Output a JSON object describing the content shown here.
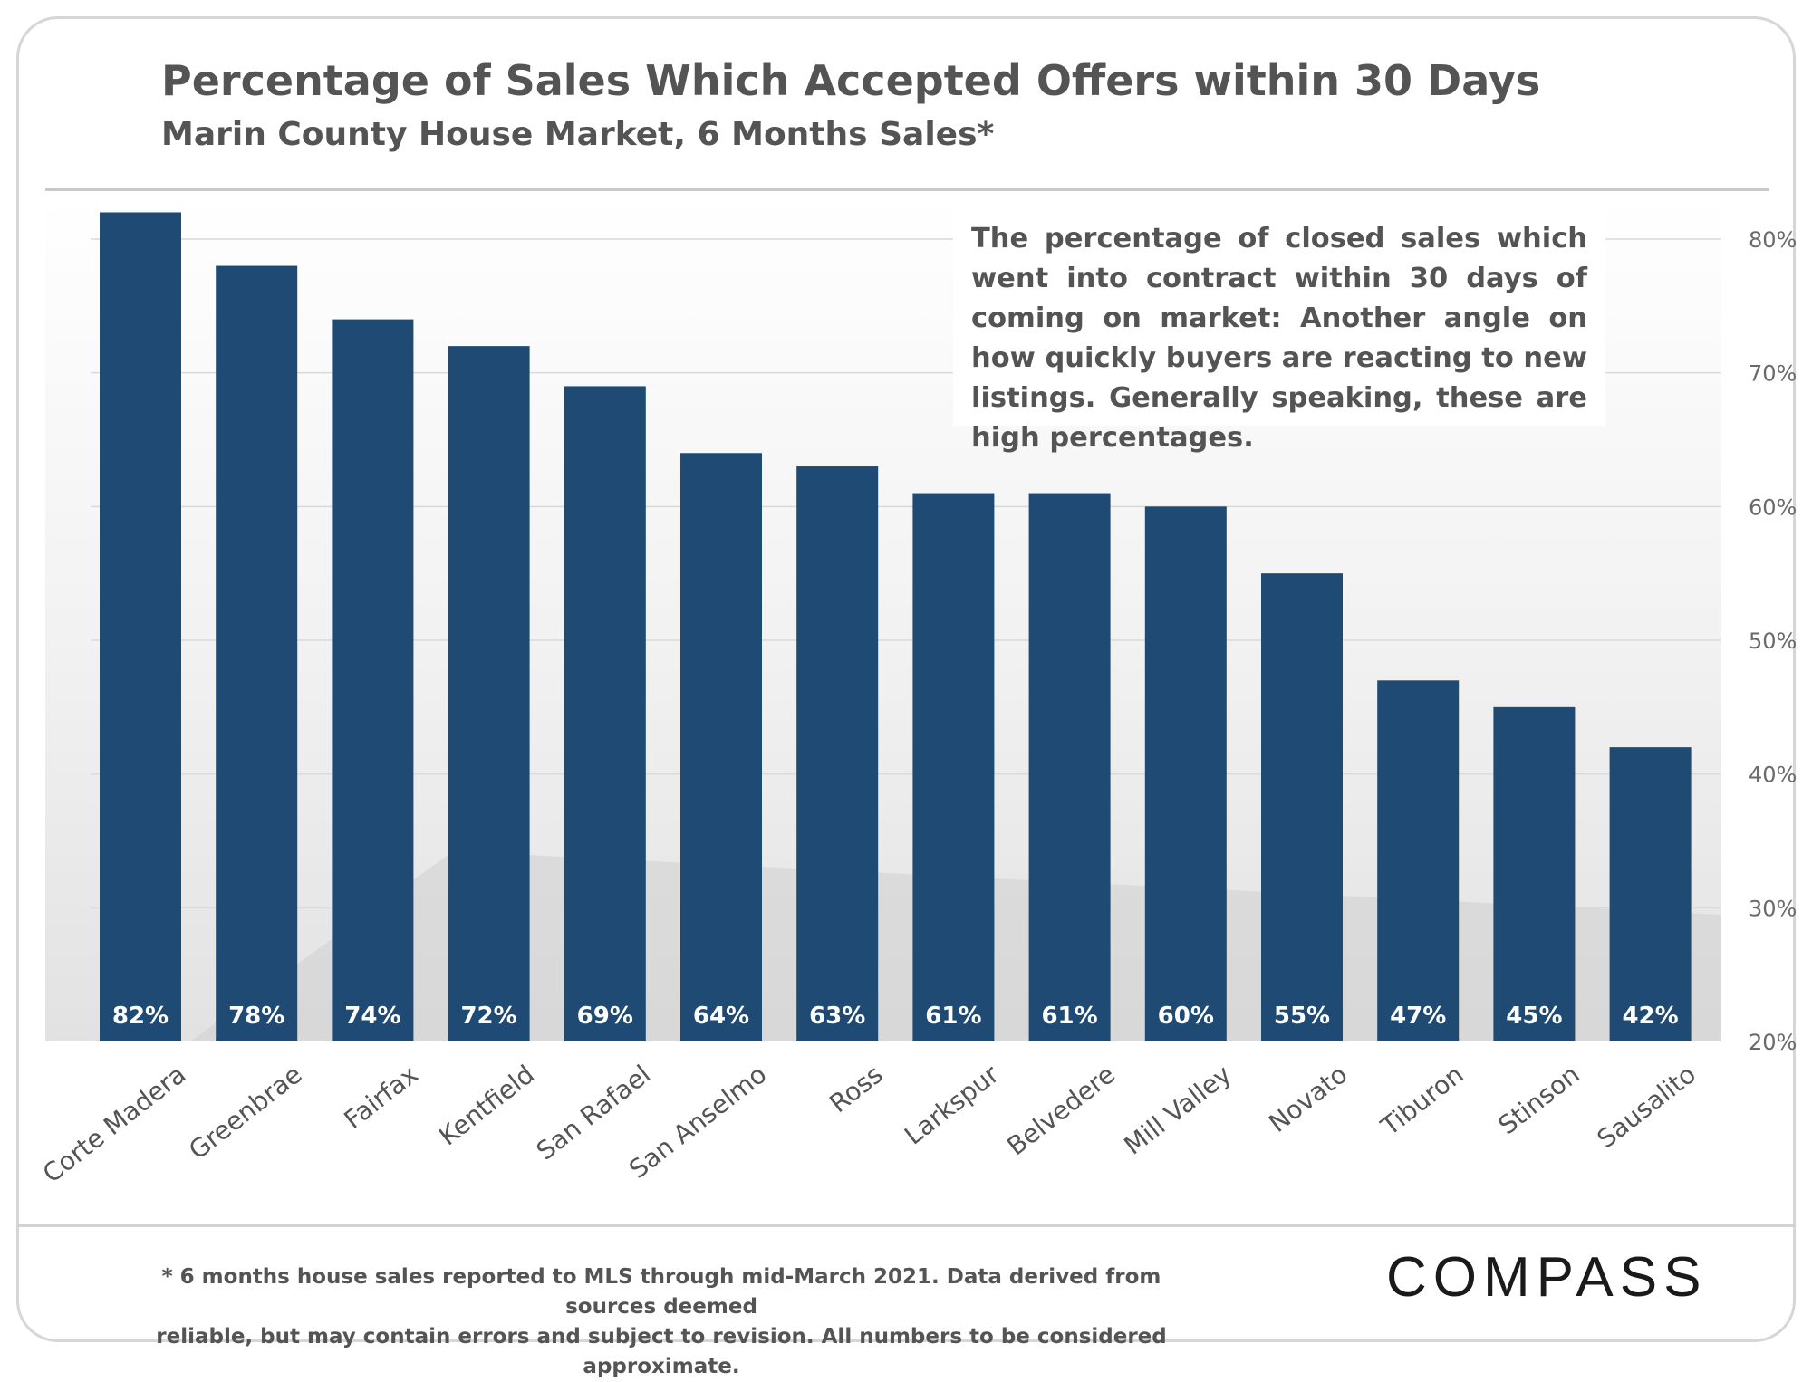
{
  "header": {
    "title": "Percentage of Sales Which Accepted Offers within 30 Days",
    "subtitle": "Marin County House Market, 6 Months Sales*"
  },
  "annotation": "The percentage of closed sales which went into contract within 30 days of coming on market:  Another angle on how quickly buyers are reacting to new listings. Generally speaking, these are high percentages.",
  "footnote": {
    "line1": "* 6 months house sales reported to MLS through mid-March 2021. Data derived from sources deemed",
    "line2": "reliable, but may contain errors and subject to revision. All numbers to be considered approximate."
  },
  "logo": "COMPASS",
  "colors": {
    "bar": "#1f4a73",
    "gridline": "#d9d9d9",
    "text": "#545454"
  },
  "chart_data": {
    "type": "bar",
    "categories": [
      "Corte Madera",
      "Greenbrae",
      "Fairfax",
      "Kentfield",
      "San Rafael",
      "San Anselmo",
      "Ross",
      "Larkspur",
      "Belvedere",
      "Mill Valley",
      "Novato",
      "Tiburon",
      "Stinson",
      "Sausalito"
    ],
    "values": [
      82,
      78,
      74,
      72,
      69,
      64,
      63,
      61,
      61,
      60,
      55,
      47,
      45,
      42
    ],
    "value_labels": [
      "82%",
      "78%",
      "74%",
      "72%",
      "69%",
      "64%",
      "63%",
      "61%",
      "61%",
      "60%",
      "55%",
      "47%",
      "45%",
      "42%"
    ],
    "ylim": [
      20,
      82
    ],
    "yticks": [
      20,
      30,
      40,
      50,
      60,
      70,
      80
    ],
    "ytick_labels": [
      "20%",
      "30%",
      "40%",
      "50%",
      "60%",
      "70%",
      "80%"
    ],
    "y_axis_position": "right",
    "grid": true,
    "xlabel": "",
    "ylabel": ""
  }
}
